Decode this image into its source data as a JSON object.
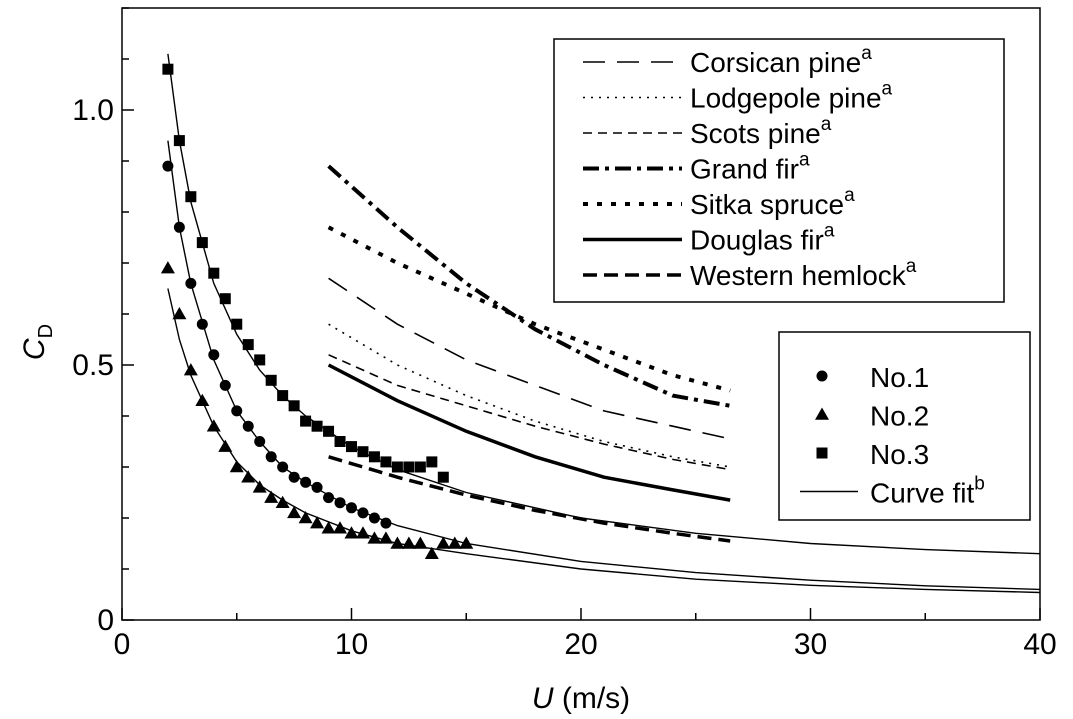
{
  "chart_data": {
    "type": "scatter",
    "xlabel": {
      "main": "U",
      "unit": " (m/s)"
    },
    "ylabel": {
      "main": "C",
      "sub": "D"
    },
    "xlim": [
      0,
      40
    ],
    "ylim": [
      0,
      1.2
    ],
    "x_ticks": [
      0,
      10,
      20,
      30,
      40
    ],
    "x_tick_labels": [
      "0",
      "10",
      "20",
      "30",
      "40"
    ],
    "y_ticks": [
      0,
      0.5,
      1.0
    ],
    "y_tick_labels": [
      "0",
      "0.5",
      "1.0"
    ],
    "x_minor_step": 5,
    "y_minor_step": 0.1,
    "grid": false,
    "series": [
      {
        "name": "No.1",
        "marker": "circle",
        "x": [
          2,
          2.5,
          3,
          3.5,
          4,
          4.5,
          5,
          5.5,
          6,
          6.5,
          7,
          7.5,
          8,
          8.5,
          9,
          9.5,
          10,
          10.5,
          11,
          11.5
        ],
        "y": [
          0.89,
          0.77,
          0.66,
          0.58,
          0.52,
          0.46,
          0.41,
          0.38,
          0.35,
          0.32,
          0.3,
          0.28,
          0.27,
          0.26,
          0.24,
          0.23,
          0.22,
          0.21,
          0.2,
          0.19
        ]
      },
      {
        "name": "No.2",
        "marker": "triangle",
        "x": [
          2,
          2.5,
          3,
          3.5,
          4,
          4.5,
          5,
          5.5,
          6,
          6.5,
          7,
          7.5,
          8,
          8.5,
          9,
          9.5,
          10,
          10.5,
          11,
          11.5,
          12,
          12.5,
          13,
          13.5,
          14,
          14.5,
          15
        ],
        "y": [
          0.69,
          0.6,
          0.49,
          0.43,
          0.38,
          0.34,
          0.3,
          0.28,
          0.26,
          0.24,
          0.23,
          0.21,
          0.2,
          0.19,
          0.18,
          0.18,
          0.17,
          0.17,
          0.16,
          0.16,
          0.15,
          0.15,
          0.15,
          0.13,
          0.15,
          0.15,
          0.15
        ]
      },
      {
        "name": "No.3",
        "marker": "square",
        "x": [
          2,
          2.5,
          3,
          3.5,
          4,
          4.5,
          5,
          5.5,
          6,
          6.5,
          7,
          7.5,
          8,
          8.5,
          9,
          9.5,
          10,
          10.5,
          11,
          11.5,
          12,
          12.5,
          13,
          13.5,
          14
        ],
        "y": [
          1.08,
          0.94,
          0.83,
          0.74,
          0.68,
          0.63,
          0.58,
          0.54,
          0.51,
          0.47,
          0.44,
          0.42,
          0.39,
          0.38,
          0.37,
          0.35,
          0.34,
          0.33,
          0.32,
          0.31,
          0.3,
          0.3,
          0.3,
          0.31,
          0.28
        ]
      }
    ],
    "curve_fits": [
      {
        "for": "No.1",
        "x": [
          2,
          2.5,
          3,
          4,
          5,
          6,
          7,
          8,
          10,
          12,
          15,
          20,
          25,
          30,
          35,
          40
        ],
        "y": [
          0.94,
          0.77,
          0.66,
          0.51,
          0.41,
          0.35,
          0.3,
          0.27,
          0.22,
          0.185,
          0.15,
          0.115,
          0.093,
          0.078,
          0.067,
          0.06
        ]
      },
      {
        "for": "No.2",
        "x": [
          2,
          2.5,
          3,
          4,
          5,
          6,
          7,
          8,
          10,
          12,
          15,
          20,
          25,
          30,
          35,
          40
        ],
        "y": [
          0.65,
          0.55,
          0.48,
          0.38,
          0.31,
          0.265,
          0.235,
          0.21,
          0.175,
          0.15,
          0.13,
          0.1,
          0.08,
          0.068,
          0.06,
          0.054
        ]
      },
      {
        "for": "No.3",
        "x": [
          2,
          2.5,
          3,
          4,
          5,
          6,
          7,
          8,
          10,
          12,
          15,
          20,
          25,
          30,
          35,
          40
        ],
        "y": [
          1.11,
          0.94,
          0.82,
          0.66,
          0.56,
          0.49,
          0.44,
          0.4,
          0.34,
          0.295,
          0.25,
          0.2,
          0.17,
          0.15,
          0.138,
          0.13
        ]
      }
    ],
    "species_curves": [
      {
        "name": "Corsican pine",
        "style": "longdash",
        "x": [
          9,
          12,
          15,
          18,
          21,
          24,
          26.5
        ],
        "y": [
          0.67,
          0.58,
          0.51,
          0.46,
          0.41,
          0.38,
          0.355
        ]
      },
      {
        "name": "Lodgepole pine",
        "style": "dotted",
        "x": [
          9,
          12,
          15,
          18,
          21,
          24,
          26.5
        ],
        "y": [
          0.58,
          0.5,
          0.44,
          0.39,
          0.35,
          0.32,
          0.3
        ]
      },
      {
        "name": "Scots pine",
        "style": "shortdash",
        "x": [
          9,
          12,
          15,
          18,
          21,
          24,
          26.5
        ],
        "y": [
          0.52,
          0.46,
          0.42,
          0.38,
          0.345,
          0.315,
          0.295
        ]
      },
      {
        "name": "Grand fir",
        "style": "dashdot",
        "x": [
          9,
          12,
          15,
          18,
          21,
          24,
          26.5
        ],
        "y": [
          0.89,
          0.77,
          0.66,
          0.57,
          0.5,
          0.44,
          0.42
        ]
      },
      {
        "name": "Sitka spruce",
        "style": "bolddot",
        "x": [
          9,
          12,
          15,
          18,
          21,
          24,
          26.5
        ],
        "y": [
          0.77,
          0.7,
          0.64,
          0.58,
          0.53,
          0.48,
          0.45
        ]
      },
      {
        "name": "Douglas fir",
        "style": "solidbold",
        "x": [
          9,
          12,
          15,
          18,
          21,
          24,
          26.5
        ],
        "y": [
          0.5,
          0.43,
          0.37,
          0.32,
          0.28,
          0.255,
          0.235
        ]
      },
      {
        "name": "Western hemlock",
        "style": "bolddash",
        "x": [
          9,
          12,
          15,
          18,
          21,
          24,
          26.5
        ],
        "y": [
          0.32,
          0.28,
          0.245,
          0.215,
          0.19,
          0.17,
          0.155
        ]
      }
    ],
    "legend_species": {
      "position": "top-right",
      "entries": [
        {
          "label": "Corsican pine",
          "sup": "a",
          "style": "longdash"
        },
        {
          "label": "Lodgepole pine",
          "sup": "a",
          "style": "dotted"
        },
        {
          "label": "Scots pine",
          "sup": "a",
          "style": "shortdash"
        },
        {
          "label": "Grand fir",
          "sup": "a",
          "style": "dashdot"
        },
        {
          "label": "Sitka spruce",
          "sup": "a",
          "style": "bolddot"
        },
        {
          "label": "Douglas fir",
          "sup": "a",
          "style": "solidbold"
        },
        {
          "label": "Western hemlock",
          "sup": "a",
          "style": "bolddash"
        }
      ]
    },
    "legend_samples": {
      "position": "right",
      "entries": [
        {
          "label": "No.1",
          "sup": "",
          "marker": "circle"
        },
        {
          "label": "No.2",
          "sup": "",
          "marker": "triangle"
        },
        {
          "label": "No.3",
          "sup": "",
          "marker": "square"
        },
        {
          "label": "Curve fit",
          "sup": "b",
          "marker": "line"
        }
      ]
    }
  }
}
